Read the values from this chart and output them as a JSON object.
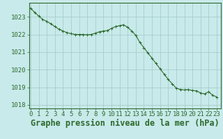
{
  "title": "Graphe pression niveau de la mer (hPa)",
  "background_color": "#c8eaea",
  "plot_bg_color": "#c8eaea",
  "line_color": "#2d6a2d",
  "marker_color": "#2d6a2d",
  "grid_color": "#a0c8c8",
  "ylim": [
    1017.8,
    1023.8
  ],
  "xlim": [
    -0.2,
    23.5
  ],
  "yticks": [
    1018,
    1019,
    1020,
    1021,
    1022,
    1023
  ],
  "xticks": [
    0,
    1,
    2,
    3,
    4,
    5,
    6,
    7,
    8,
    9,
    10,
    11,
    12,
    13,
    14,
    15,
    16,
    17,
    18,
    19,
    20,
    21,
    22,
    23
  ],
  "title_fontsize": 8.5,
  "tick_fontsize": 6.5,
  "title_color": "#2d6a2d",
  "tick_color": "#2d6a2d",
  "axis_color": "#2d6a2d",
  "hours": [
    0,
    1,
    2,
    3,
    4,
    5,
    6,
    7,
    8,
    9,
    10,
    11,
    12,
    13,
    14,
    15,
    16,
    17,
    18,
    19,
    20,
    21,
    22,
    23
  ],
  "pressure": [
    1023.5,
    1023.05,
    1022.75,
    1022.45,
    1022.2,
    1022.05,
    1022.0,
    1022.0,
    1022.1,
    1022.2,
    1022.4,
    1022.5,
    1022.35,
    1021.8,
    1021.3,
    1020.85,
    1020.3,
    1019.7,
    1019.1,
    1018.9,
    1018.85,
    1018.7,
    1018.75,
    1018.45
  ],
  "hours_fine": [
    0,
    0.5,
    1,
    1.5,
    2,
    2.5,
    3,
    3.5,
    4,
    4.5,
    5,
    5.5,
    6,
    6.5,
    7,
    7.5,
    8,
    8.5,
    9,
    9.5,
    10,
    10.5,
    11,
    11.5,
    12,
    12.5,
    13,
    13.5,
    14,
    14.5,
    15,
    15.5,
    16,
    16.5,
    17,
    17.5,
    18,
    18.5,
    19,
    19.5,
    20,
    20.5,
    21,
    21.5,
    22,
    22.5,
    23
  ],
  "pressure_fine": [
    1023.5,
    1023.25,
    1023.05,
    1022.85,
    1022.75,
    1022.6,
    1022.45,
    1022.3,
    1022.2,
    1022.1,
    1022.05,
    1022.0,
    1022.0,
    1022.0,
    1021.98,
    1022.0,
    1022.08,
    1022.15,
    1022.2,
    1022.22,
    1022.35,
    1022.45,
    1022.5,
    1022.55,
    1022.4,
    1022.2,
    1021.95,
    1021.55,
    1021.25,
    1020.95,
    1020.65,
    1020.35,
    1020.05,
    1019.75,
    1019.45,
    1019.2,
    1018.95,
    1018.88,
    1018.85,
    1018.87,
    1018.82,
    1018.8,
    1018.68,
    1018.62,
    1018.75,
    1018.55,
    1018.45
  ]
}
